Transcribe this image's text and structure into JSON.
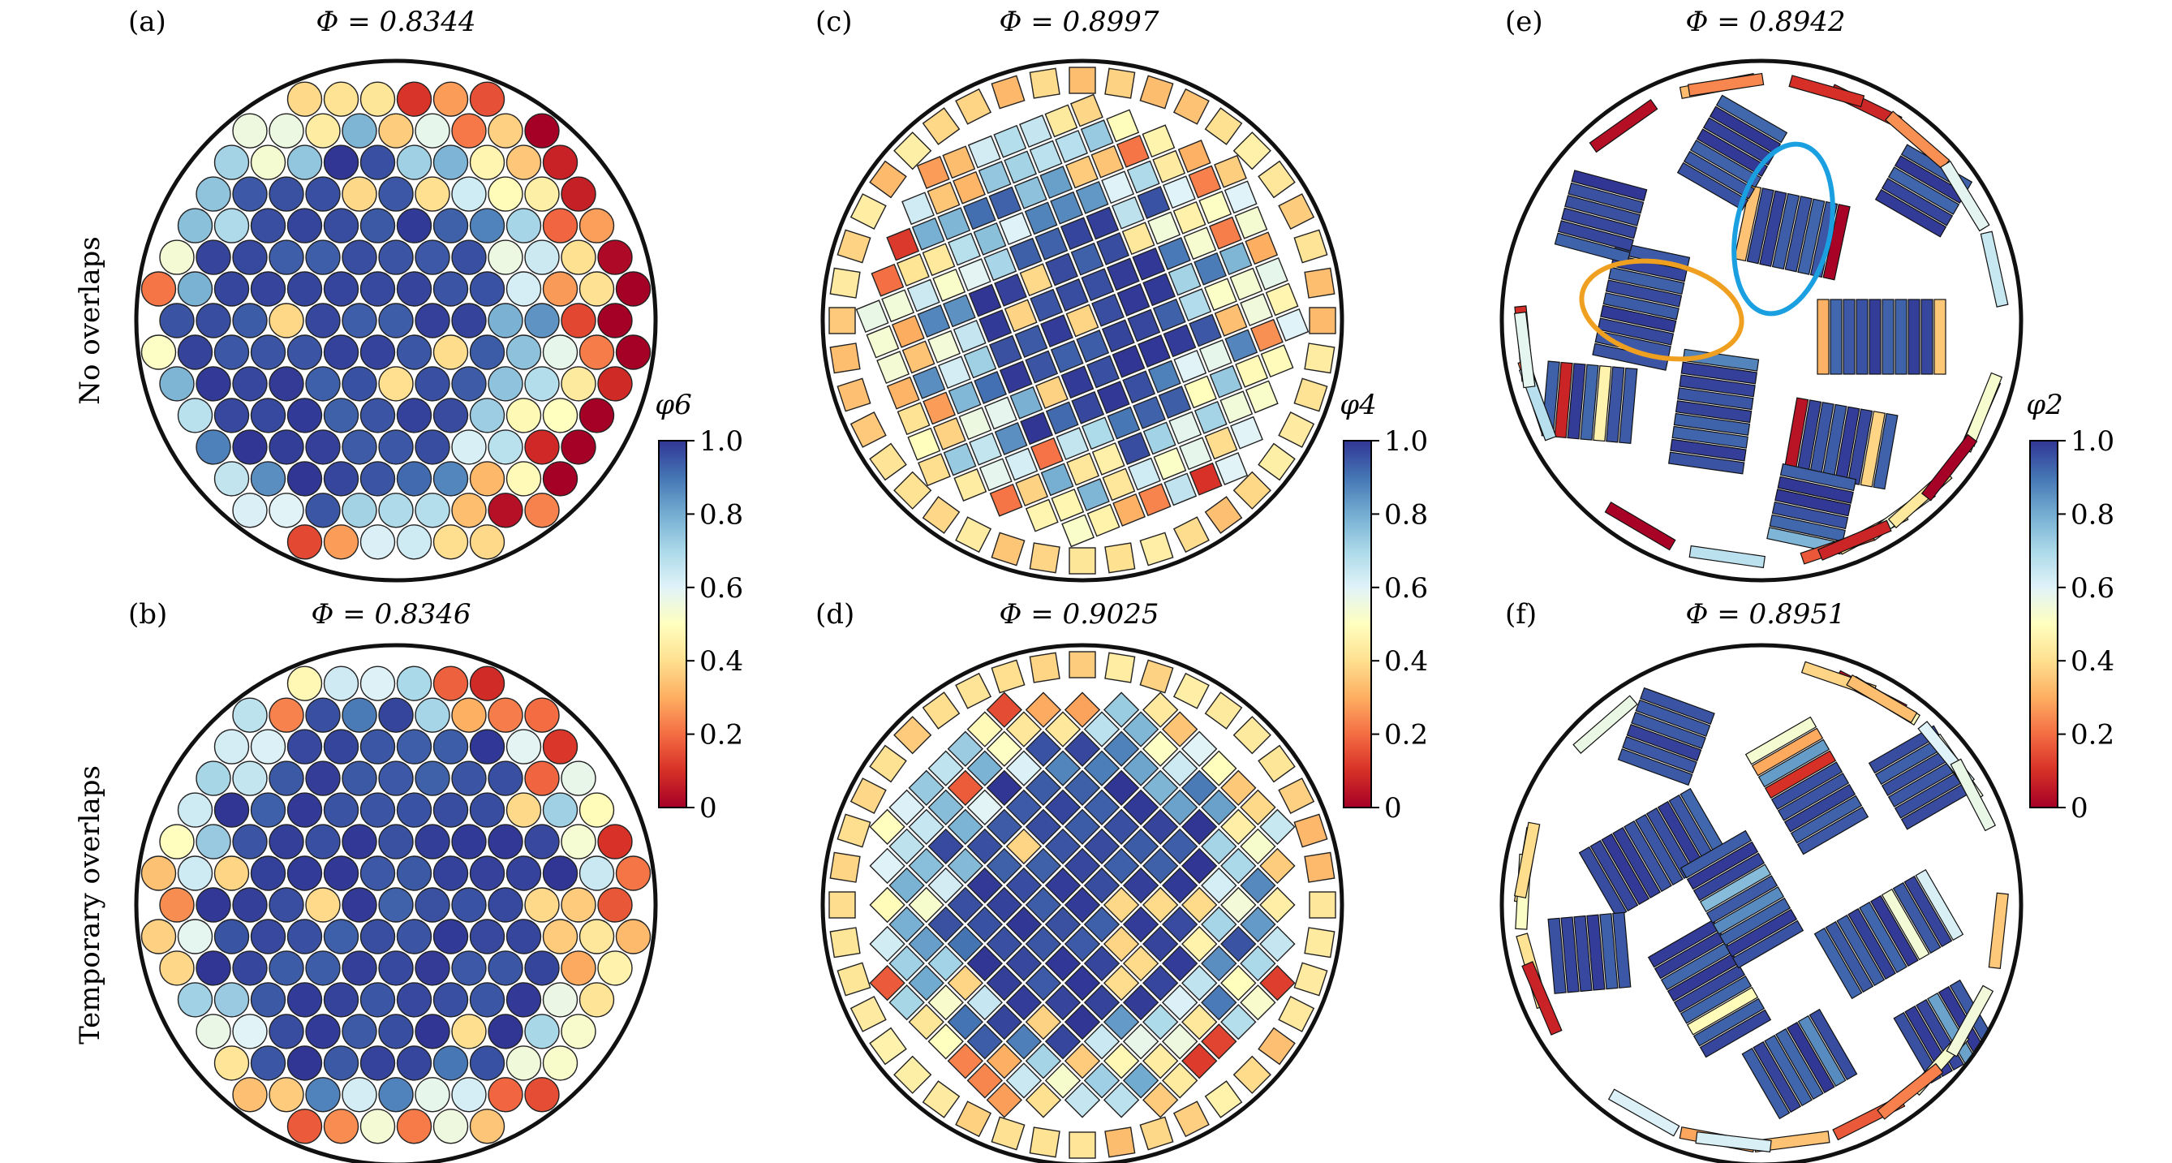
{
  "figure": {
    "row_labels": [
      "No overlaps",
      "Temporary overlaps"
    ],
    "panels": [
      {
        "id": "a",
        "label": "(a)",
        "title": "Φ = 0.8344",
        "shape": "disk"
      },
      {
        "id": "b",
        "label": "(b)",
        "title": "Φ = 0.8346",
        "shape": "disk"
      },
      {
        "id": "c",
        "label": "(c)",
        "title": "Φ = 0.8997",
        "shape": "square"
      },
      {
        "id": "d",
        "label": "(d)",
        "title": "Φ = 0.9025",
        "shape": "square"
      },
      {
        "id": "e",
        "label": "(e)",
        "title": "Φ = 0.8942",
        "shape": "rectangle"
      },
      {
        "id": "f",
        "label": "(f)",
        "title": "Φ = 0.8951",
        "shape": "rectangle"
      }
    ],
    "colorbars": [
      {
        "id": "cb1",
        "title": "φ6",
        "ticks": [
          "0",
          "0.2",
          "0.4",
          "0.6",
          "0.8",
          "1.0"
        ]
      },
      {
        "id": "cb2",
        "title": "φ4",
        "ticks": [
          "0",
          "0.2",
          "0.4",
          "0.6",
          "0.8",
          "1.0"
        ]
      },
      {
        "id": "cb3",
        "title": "φ2",
        "ticks": [
          "0",
          "0.2",
          "0.4",
          "0.6",
          "0.8",
          "1.0"
        ]
      }
    ],
    "colormap": [
      "#a50026",
      "#d73027",
      "#f46d43",
      "#fdae61",
      "#fee090",
      "#ffffbf",
      "#e0f3f8",
      "#abd9e9",
      "#74add1",
      "#4575b4",
      "#313695"
    ],
    "highlight_colors": {
      "orange_ellipse": "#f0a020",
      "blue_ellipse": "#1a9fe0"
    }
  }
}
